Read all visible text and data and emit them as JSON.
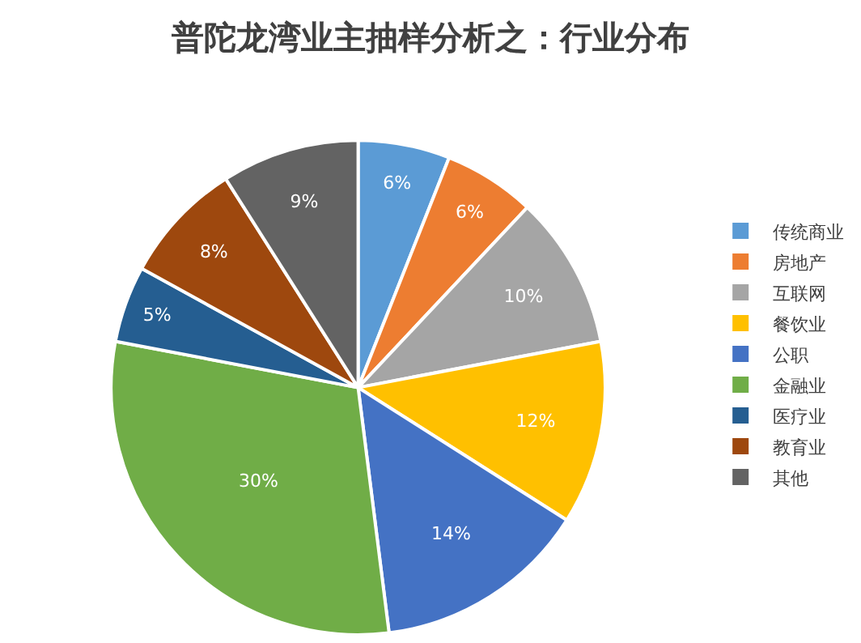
{
  "chart_data": {
    "type": "pie",
    "title": "普陀龙湾业主抽样分析之：行业分布",
    "categories": [
      "传统商业",
      "房地产",
      "互联网",
      "餐饮业",
      "公职",
      "金融业",
      "医疗业",
      "教育业",
      "其他"
    ],
    "values": [
      6,
      6,
      10,
      12,
      14,
      30,
      5,
      8,
      9
    ],
    "colors": [
      "#5b9bd5",
      "#ed7d31",
      "#a5a5a5",
      "#ffc000",
      "#4472c4",
      "#70ad47",
      "#255e91",
      "#9e480e",
      "#636363"
    ],
    "value_labels": [
      "6%",
      "6%",
      "10%",
      "12%",
      "14%",
      "30%",
      "5%",
      "8%",
      "9%"
    ],
    "legend": "right"
  }
}
